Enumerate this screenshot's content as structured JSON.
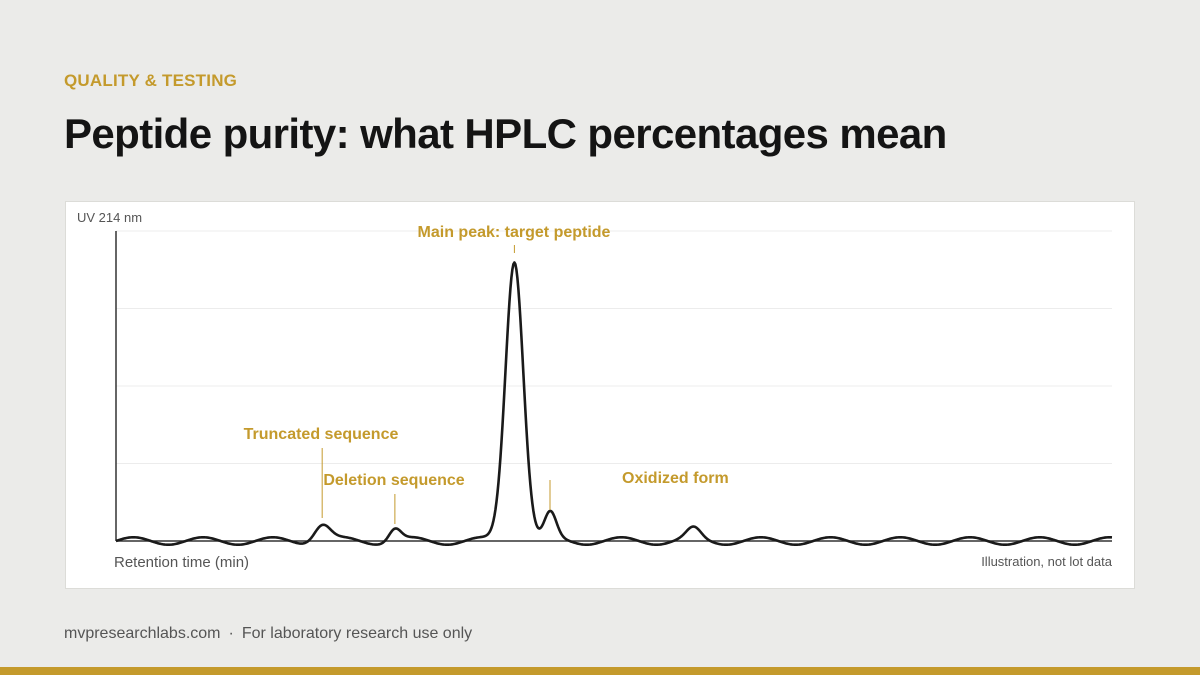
{
  "header": {
    "eyebrow": "QUALITY & TESTING",
    "title": "Peptide purity: what HPLC percentages mean"
  },
  "chart_data": {
    "type": "line",
    "ylabel": "UV 214 nm",
    "xlabel": "Retention time (min)",
    "note": "Illustration, not lot data",
    "grid": true,
    "xlim": [
      0,
      100
    ],
    "ylim": [
      0,
      100
    ],
    "baseline": {
      "amplitude": 1.2,
      "period": 7
    },
    "peaks": [
      {
        "label": "Truncated sequence",
        "x": 20.7,
        "height": 5.5,
        "width": 0.8
      },
      {
        "label": "Deletion sequence",
        "x": 28.0,
        "height": 4.0,
        "width": 0.6
      },
      {
        "label": "Main peak: target peptide",
        "x": 40.0,
        "height": 91.0,
        "width": 0.9
      },
      {
        "label": "Oxidized form",
        "x": 43.6,
        "height": 8.5,
        "width": 0.6
      },
      {
        "label": "",
        "x": 58.0,
        "height": 3.5,
        "width": 0.7
      }
    ]
  },
  "footer": {
    "site": "mvpresearchlabs.com",
    "separator": "·",
    "disclaimer": "For laboratory research use only"
  },
  "colors": {
    "accent": "#c49a2c",
    "trace": "#1a1a1a",
    "grid": "#ececec",
    "axis": "#333333"
  }
}
